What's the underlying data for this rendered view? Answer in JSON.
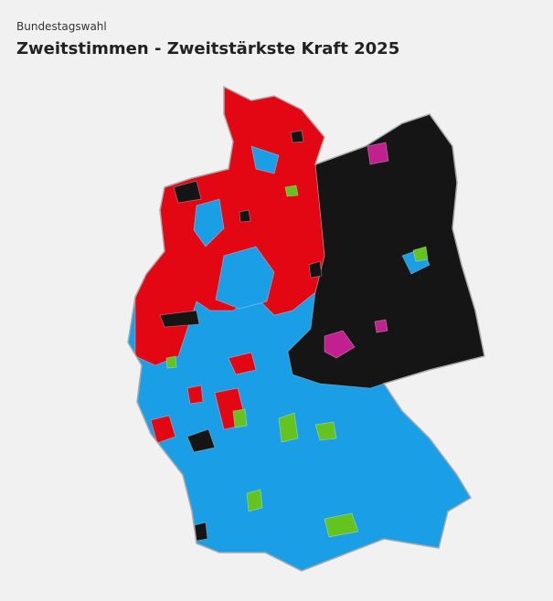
{
  "header": {
    "kicker": "Bundestagswahl",
    "title": "Zweitstimmen - Zweitstärkste Kraft 2025"
  }
}
